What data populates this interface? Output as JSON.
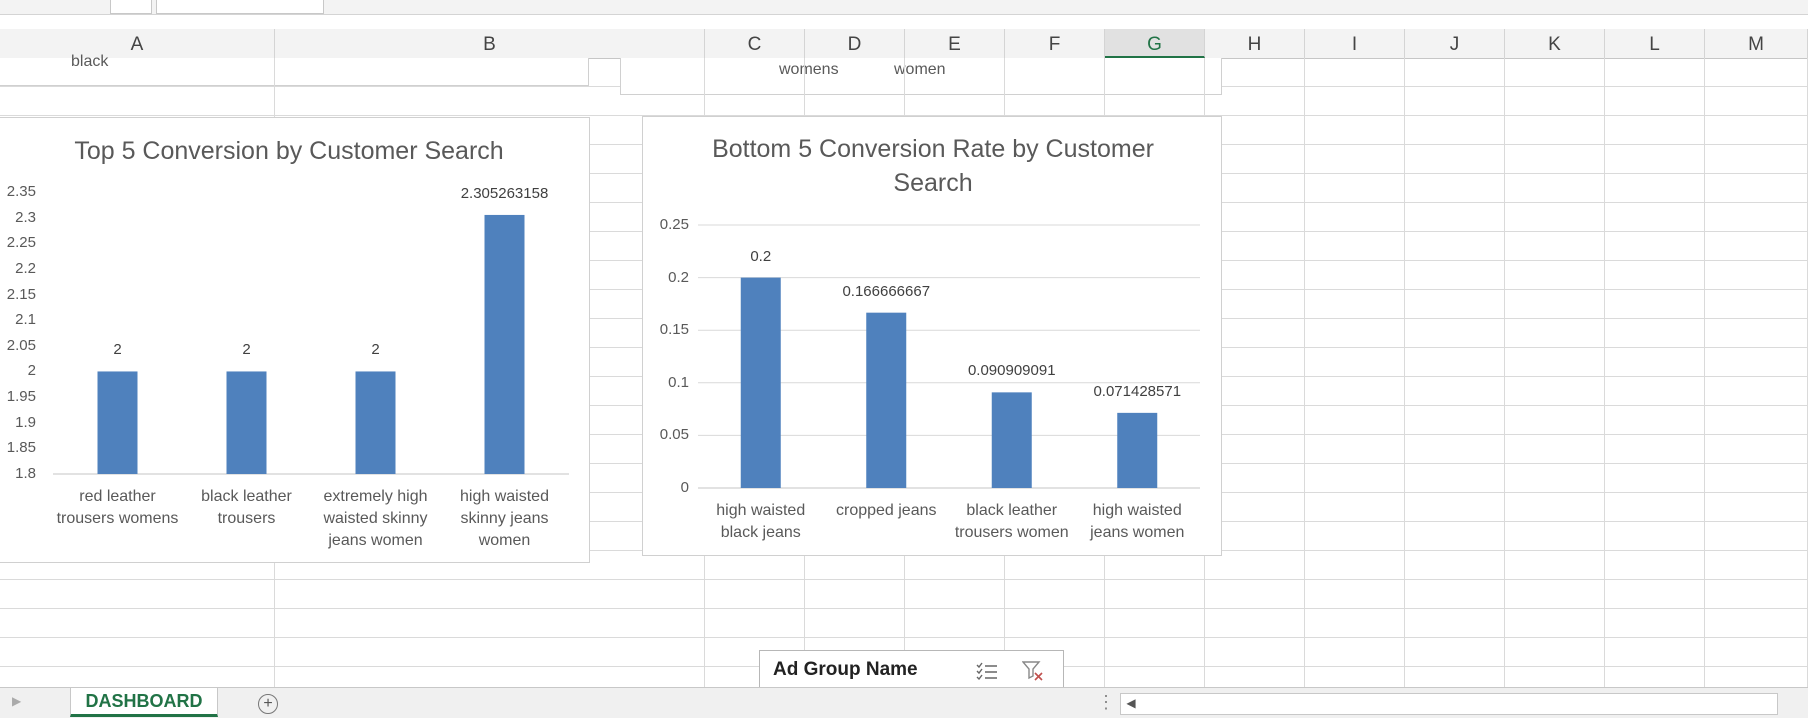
{
  "columns": [
    "A",
    "B",
    "C",
    "D",
    "E",
    "F",
    "G",
    "H",
    "I",
    "J",
    "K",
    "L",
    "M"
  ],
  "active_column": "G",
  "remnants": {
    "top_left_text": "black",
    "top_right_texts": [
      "womens",
      "women"
    ]
  },
  "chart_data": [
    {
      "type": "bar",
      "title": "Top 5 Conversion by Customer Search",
      "categories": [
        [
          "red leather",
          "trousers womens"
        ],
        [
          "black leather",
          "trousers"
        ],
        [
          "extremely high",
          "waisted skinny",
          "jeans women"
        ],
        [
          "high waisted",
          "skinny jeans",
          "women"
        ]
      ],
      "values": [
        2,
        2,
        2,
        2.305263158
      ],
      "data_labels": [
        "2",
        "2",
        "2",
        "2.305263158"
      ],
      "ylim": [
        1.8,
        2.35
      ],
      "yticks": [
        "1.8",
        "1.85",
        "1.9",
        "1.95",
        "2",
        "2.05",
        "2.1",
        "2.15",
        "2.2",
        "2.25",
        "2.3",
        "2.35"
      ],
      "grid": false,
      "color": "#4f81bd"
    },
    {
      "type": "bar",
      "title": "Bottom 5 Conversion Rate by Customer Search",
      "title_lines": [
        "Bottom 5 Conversion Rate by Customer",
        "Search"
      ],
      "categories": [
        [
          "high waisted",
          "black jeans"
        ],
        [
          "cropped jeans"
        ],
        [
          "black leather",
          "trousers women"
        ],
        [
          "high waisted",
          "jeans women"
        ]
      ],
      "values": [
        0.2,
        0.166666667,
        0.090909091,
        0.071428571
      ],
      "data_labels": [
        "0.2",
        "0.166666667",
        "0.090909091",
        "0.071428571"
      ],
      "ylim": [
        0,
        0.25
      ],
      "yticks": [
        "0",
        "0.05",
        "0.1",
        "0.15",
        "0.2",
        "0.25"
      ],
      "grid": true,
      "color": "#4f81bd"
    }
  ],
  "slicer": {
    "title": "Ad Group Name"
  },
  "sheet_tab": "DASHBOARD",
  "add_sheet_symbol": "+"
}
